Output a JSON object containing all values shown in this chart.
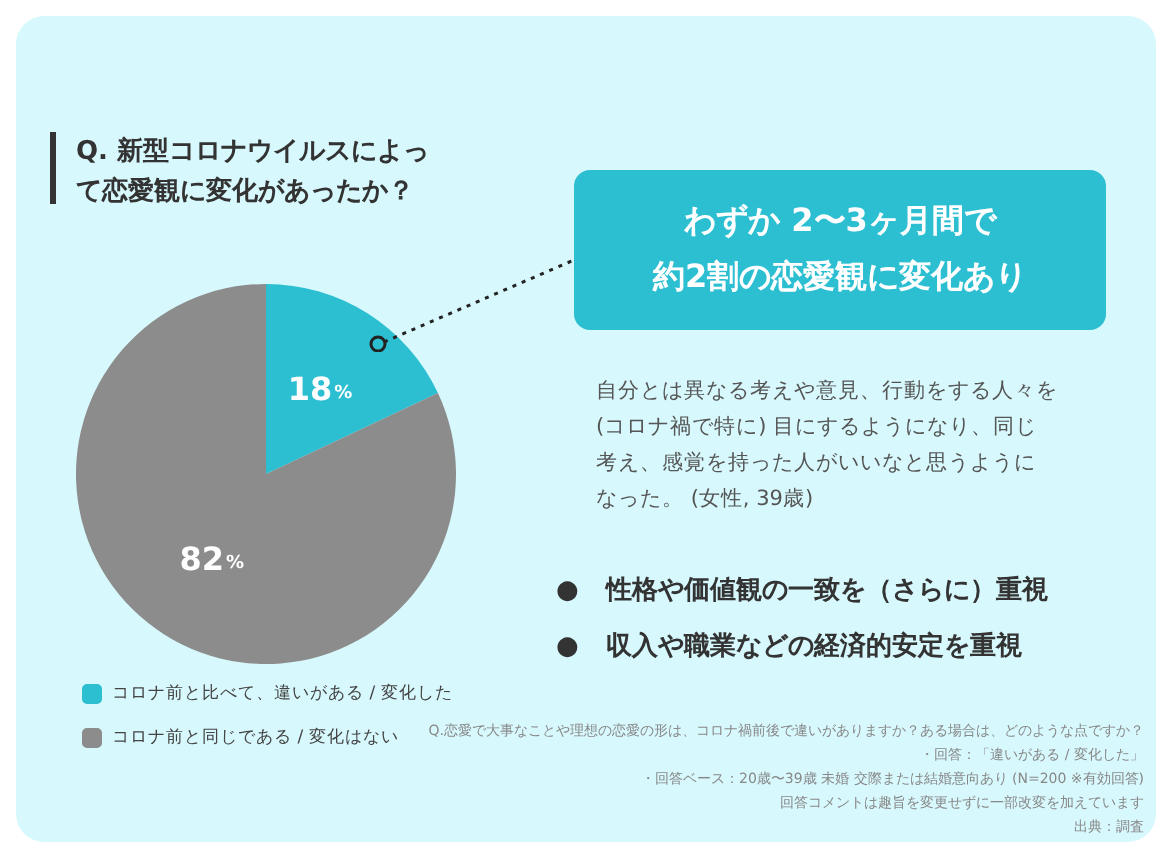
{
  "chart_data": {
    "type": "pie",
    "title": "Q. 新型コロナウイルスによって恋愛観に変化があったか？",
    "categories": [
      "コロナ前と比べて、違いがある / 変化した",
      "コロナ前と同じである / 変化はない"
    ],
    "values": [
      18,
      82
    ],
    "colors": [
      "#2bbfd1",
      "#8c8c8c"
    ],
    "value_labels": [
      "18%",
      "82%"
    ],
    "legend": "bottom left",
    "annotations": [
      "わずか 2〜3ヶ月間で",
      "約2割の恋愛観に変化あり",
      "自分とは異なる考えや意見、行動をする人々を",
      "(コロナ禍で特に) 目にするようになり、同じ",
      "考え、感覚を持った人がいいなと思うように",
      "なった。 (女性, 39歳)",
      "●   性格や価値観の一致を（さらに）重視",
      "●   収入や職業などの経済的安定を重視",
      "Q.恋愛で大事なことや理想の恋愛の形は、コロナ禍前後で違いがありますか？ある場合は、どのような点ですか？",
      "・回答：「違いがある / 変化した」",
      "・回答ベース：20歳〜39歳 未婚 交際または結婚意向あり (N=200 ※有効回答)",
      "回答コメントは趣旨を変更せずに一部改変を加えています",
      "出典：調査"
    ]
  }
}
